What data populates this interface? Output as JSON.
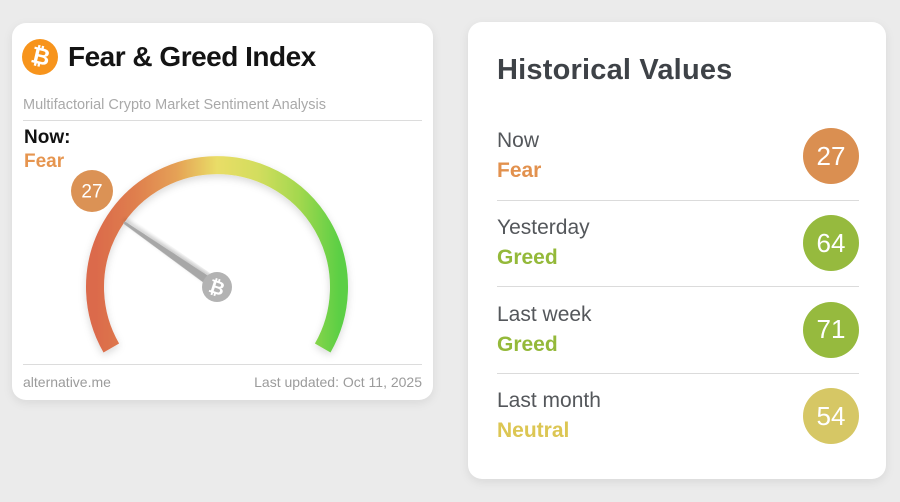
{
  "page": {
    "background_color": "#ebebeb"
  },
  "left_card": {
    "bitcoin_glyph": "₿",
    "bitcoin_color": "#f7941c",
    "title": "Fear & Greed Index",
    "subtitle": "Multifactorial Crypto Market Sentiment Analysis",
    "now_label": "Now:",
    "now_status": "Fear",
    "now_status_color": "#e6954f",
    "footer_left": "alternative.me",
    "footer_right": "Last updated: Oct 11, 2025"
  },
  "gauge": {
    "value": 27,
    "min": 0,
    "max": 100,
    "start_angle": 210,
    "sweep": 240,
    "badge_color": "#db9255",
    "needle_color": "#a7a7a7",
    "hub_color": "#b3b3b3",
    "hub_glyph": "₿",
    "arc_colors": [
      "#db6a4b",
      "#df7f4e",
      "#e5a156",
      "#e9dd67",
      "#d3dd5e",
      "#a4d84f",
      "#5ccf44"
    ]
  },
  "right_card": {
    "title": "Historical Values",
    "rows": [
      {
        "label": "Now",
        "status": "Fear",
        "value": "27",
        "circle_color": "#da8f51",
        "status_color": "#e2914e"
      },
      {
        "label": "Yesterday",
        "status": "Greed",
        "value": "64",
        "circle_color": "#96ba3e",
        "status_color": "#94b93a"
      },
      {
        "label": "Last week",
        "status": "Greed",
        "value": "71",
        "circle_color": "#96ba3e",
        "status_color": "#94b93a"
      },
      {
        "label": "Last month",
        "status": "Neutral",
        "value": "54",
        "circle_color": "#d6c765",
        "status_color": "#dcc653"
      }
    ]
  },
  "chart_data": {
    "type": "gauge",
    "title": "Fear & Greed Index",
    "value": 27,
    "range": [
      0,
      100
    ],
    "label": "Fear",
    "history": [
      {
        "period": "Now",
        "classification": "Fear",
        "value": 27
      },
      {
        "period": "Yesterday",
        "classification": "Greed",
        "value": 64
      },
      {
        "period": "Last week",
        "classification": "Greed",
        "value": 71
      },
      {
        "period": "Last month",
        "classification": "Neutral",
        "value": 54
      }
    ]
  }
}
